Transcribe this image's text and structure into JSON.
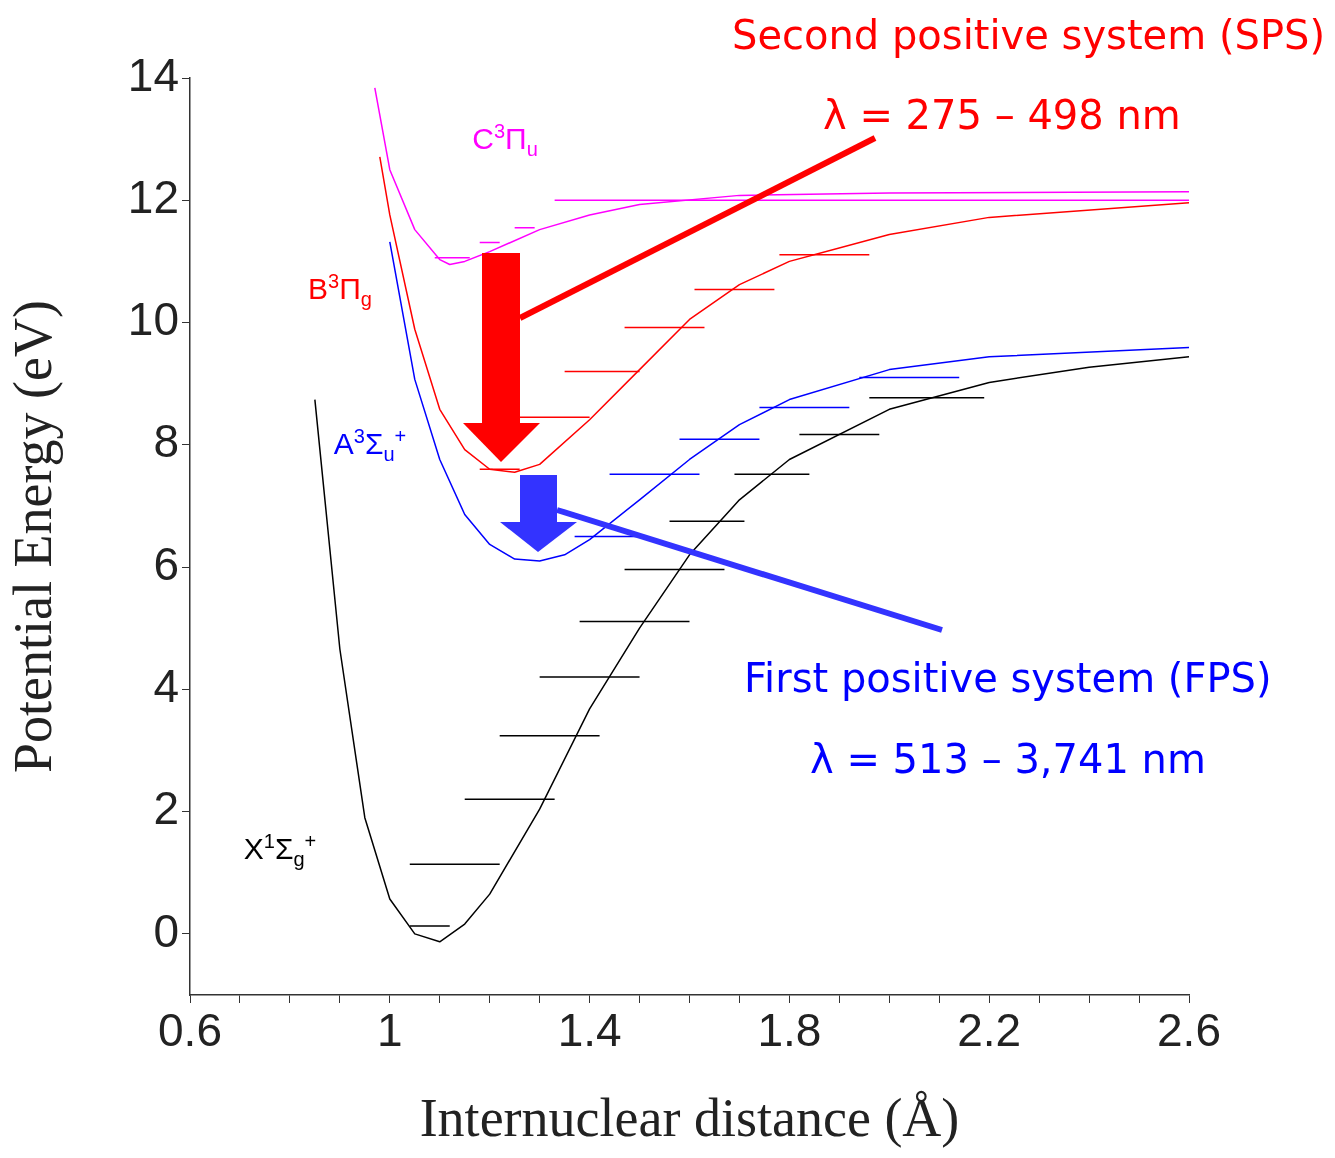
{
  "chart_data": {
    "type": "line",
    "xlabel": "Internuclear distance (Å)",
    "ylabel": "Potential Energy (eV)",
    "xlim": [
      0.6,
      2.6
    ],
    "ylim": [
      -1,
      14
    ],
    "xticks": [
      0.6,
      {
        "value": 0.7,
        "label": null
      },
      {
        "value": 0.8,
        "label": null
      },
      {
        "value": 0.9,
        "label": null
      },
      1,
      {
        "value": 1.1,
        "label": null
      },
      {
        "value": 1.2,
        "label": null
      },
      {
        "value": 1.3,
        "label": null
      },
      1.4,
      {
        "value": 1.5,
        "label": null
      },
      {
        "value": 1.6,
        "label": null
      },
      {
        "value": 1.7,
        "label": null
      },
      1.8,
      {
        "value": 1.9,
        "label": null
      },
      {
        "value": 2.0,
        "label": null
      },
      {
        "value": 2.1,
        "label": null
      },
      2.2,
      {
        "value": 2.3,
        "label": null
      },
      {
        "value": 2.4,
        "label": null
      },
      {
        "value": 2.5,
        "label": null
      },
      2.6
    ],
    "yticks": [
      0,
      2,
      4,
      6,
      8,
      10,
      12,
      14
    ],
    "grid": false,
    "legend": false,
    "series": [
      {
        "color": "#000000",
        "x": [
          0.85,
          0.9,
          0.95,
          1.0,
          1.05,
          1.1,
          1.15,
          1.2,
          1.3,
          1.4,
          1.5,
          1.6,
          1.7,
          1.8,
          2.0,
          2.2,
          2.4,
          2.6
        ],
        "values": [
          8.74,
          4.66,
          1.9,
          0.57,
          0.0,
          -0.13,
          0.16,
          0.65,
          2.04,
          3.68,
          5.0,
          6.2,
          7.1,
          7.76,
          8.58,
          9.02,
          9.27,
          9.44
        ]
      },
      {
        "color": "#0000ff",
        "x": [
          1.0,
          1.05,
          1.1,
          1.15,
          1.2,
          1.25,
          1.3,
          1.35,
          1.4,
          1.5,
          1.6,
          1.7,
          1.8,
          2.0,
          2.2,
          2.6
        ],
        "values": [
          11.32,
          9.07,
          7.76,
          6.86,
          6.37,
          6.13,
          6.1,
          6.2,
          6.45,
          7.1,
          7.76,
          8.33,
          8.74,
          9.23,
          9.44,
          9.59
        ]
      },
      {
        "color": "#ff0000",
        "x": [
          0.98,
          1.0,
          1.05,
          1.1,
          1.15,
          1.2,
          1.25,
          1.3,
          1.4,
          1.5,
          1.6,
          1.7,
          1.8,
          2.0,
          2.2,
          2.6
        ],
        "values": [
          12.71,
          11.76,
          9.89,
          8.58,
          7.92,
          7.6,
          7.55,
          7.68,
          8.41,
          9.23,
          10.05,
          10.62,
          11.0,
          11.44,
          11.72,
          11.96
        ]
      },
      {
        "color": "#ff00ff",
        "x": [
          0.97,
          1.0,
          1.05,
          1.1,
          1.12,
          1.15,
          1.2,
          1.3,
          1.4,
          1.5,
          1.7,
          2.0,
          2.6
        ],
        "values": [
          13.84,
          12.5,
          11.52,
          11.03,
          10.95,
          11.0,
          11.16,
          11.52,
          11.76,
          11.93,
          12.08,
          12.12,
          12.14
        ]
      },
      {
        "color": "#000000",
        "x": [
          1.04,
          1.12,
          null,
          1.04,
          1.22,
          null,
          1.15,
          1.33,
          null,
          1.22,
          1.42,
          null,
          1.3,
          1.5,
          null,
          1.38,
          1.6,
          null,
          1.47,
          1.67,
          null,
          1.56,
          1.71,
          null,
          1.69,
          1.84,
          null,
          1.82,
          1.98,
          null,
          1.96,
          2.19
        ],
        "values": [
          0.13,
          0.13,
          null,
          1.14,
          1.14,
          null,
          2.2,
          2.2,
          null,
          3.24,
          3.24,
          null,
          4.2,
          4.2,
          null,
          5.11,
          5.11,
          null,
          5.96,
          5.96,
          null,
          6.75,
          6.75,
          null,
          7.52,
          7.52,
          null,
          8.17,
          8.17,
          null,
          8.77,
          8.77
        ]
      },
      {
        "color": "#0000ff",
        "x": [
          1.37,
          1.5,
          null,
          1.44,
          1.62,
          null,
          1.58,
          1.74,
          null,
          1.74,
          1.92,
          null,
          1.94,
          2.14
        ],
        "values": [
          6.5,
          6.5,
          null,
          7.52,
          7.52,
          null,
          8.09,
          8.09,
          null,
          8.61,
          8.61,
          null,
          9.1,
          9.1
        ]
      },
      {
        "color": "#ff0000",
        "x": [
          1.18,
          1.26,
          null,
          1.26,
          1.4,
          null,
          1.35,
          1.5,
          null,
          1.47,
          1.63,
          null,
          1.61,
          1.77,
          null,
          1.78,
          1.96
        ],
        "values": [
          7.6,
          7.6,
          null,
          8.45,
          8.45,
          null,
          9.2,
          9.2,
          null,
          9.92,
          9.92,
          null,
          10.54,
          10.54,
          null,
          11.11,
          11.11
        ]
      },
      {
        "color": "#ff00ff",
        "x": [
          1.09,
          1.16,
          null,
          1.18,
          1.22,
          null,
          1.25,
          1.29,
          null,
          1.33,
          2.6
        ],
        "values": [
          11.06,
          11.06,
          null,
          11.31,
          11.31,
          null,
          11.55,
          11.55,
          null,
          12.0,
          12.0
        ]
      }
    ],
    "annotations": [
      "Second positive system (SPS)",
      "λ = 275 – 498 nm",
      "First positive system (FPS)",
      "λ = 513 – 3,741 nm",
      "X$^{1}$Σ$_{g}$$^{+}$",
      "A$^{3}$Σ$_{u}$$^{+}$",
      "B$^{3}$Π$_{g}$",
      "C$^{3}$Π$_{u}$"
    ]
  }
}
